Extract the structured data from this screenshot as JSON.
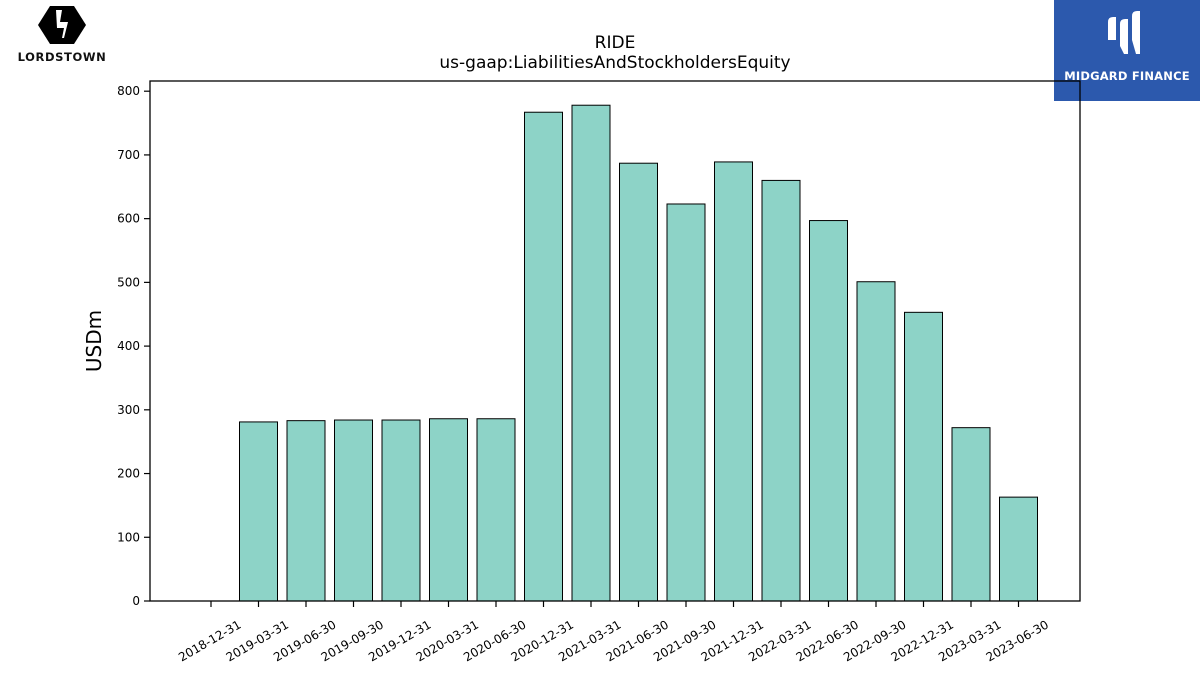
{
  "logos": {
    "left": {
      "text": "LORDSTOWN",
      "icon": "lordstown-lightning-hexagon-icon"
    },
    "right": {
      "text": "MIDGARD FINANCE",
      "icon": "midgard-m-icon",
      "background": "#2c59ad"
    }
  },
  "chart_data": {
    "type": "bar",
    "title": "RIDE",
    "subtitle": "us-gaap:LiabilitiesAndStockholdersEquity",
    "xlabel": "",
    "ylabel": "USDm",
    "categories": [
      "2018-12-31",
      "2019-03-31",
      "2019-06-30",
      "2019-09-30",
      "2019-12-31",
      "2020-03-31",
      "2020-06-30",
      "2020-12-31",
      "2021-03-31",
      "2021-06-30",
      "2021-09-30",
      "2021-12-31",
      "2022-03-31",
      "2022-06-30",
      "2022-09-30",
      "2022-12-31",
      "2023-03-31",
      "2023-06-30"
    ],
    "values": [
      null,
      281,
      283,
      284,
      284,
      286,
      286,
      767,
      778,
      687,
      623,
      689,
      660,
      597,
      501,
      453,
      272,
      163
    ],
    "ylim": [
      0,
      816
    ],
    "yticks": [
      0,
      100,
      200,
      300,
      400,
      500,
      600,
      700,
      800
    ],
    "bar_color": "#8dd3c7",
    "edge_color": "#000000",
    "grid": false
  }
}
